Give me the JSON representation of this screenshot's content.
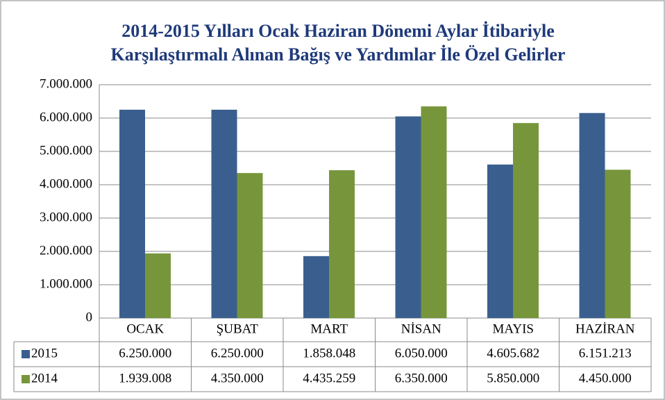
{
  "chart_data": {
    "type": "bar",
    "title": [
      "2014-2015 Yılları Ocak Haziran Dönemi Aylar İtibariyle",
      "Karşılaştırmalı Alınan Bağış ve Yardımlar İle Özel Gelirler"
    ],
    "categories": [
      "OCAK",
      "ŞUBAT",
      "MART",
      "NİSAN",
      "MAYIS",
      "HAZİRAN"
    ],
    "series": [
      {
        "name": "2015",
        "color": "#3a5f8f",
        "values": [
          6250000,
          6250000,
          1858048,
          6050000,
          4605682,
          6151213
        ],
        "value_labels": [
          "6.250.000",
          "6.250.000",
          "1.858.048",
          "6.050.000",
          "4.605.682",
          "6.151.213"
        ]
      },
      {
        "name": "2014",
        "color": "#77963b",
        "values": [
          1939008,
          4350000,
          4435259,
          6350000,
          5850000,
          4450000
        ],
        "value_labels": [
          "1.939.008",
          "4.350.000",
          "4.435.259",
          "6.350.000",
          "5.850.000",
          "4.450.000"
        ]
      }
    ],
    "ylim": [
      0,
      7000000
    ],
    "yticks": [
      0,
      {
        "value": 1000000,
        "label": "1.000.000"
      },
      {
        "value": 2000000,
        "label": "2.000.000"
      },
      {
        "value": 3000000,
        "label": "3.000.000"
      },
      {
        "value": 4000000,
        "label": "4.000.000"
      },
      {
        "value": 5000000,
        "label": "5.000.000"
      },
      {
        "value": 6000000,
        "label": "6.000.000"
      },
      {
        "value": 7000000,
        "label": "7.000.000"
      }
    ],
    "grid": true
  }
}
